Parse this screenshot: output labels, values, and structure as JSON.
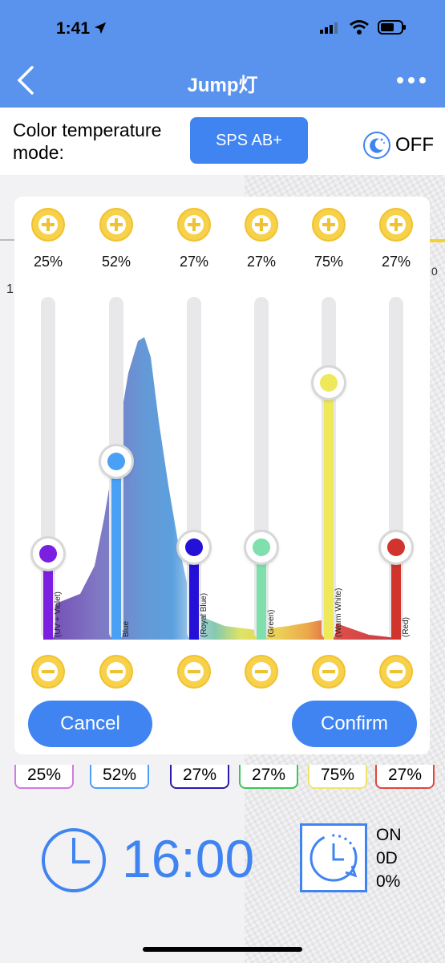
{
  "status": {
    "time": "1:41"
  },
  "nav": {
    "title": "Jump灯"
  },
  "mode": {
    "label": "Color temperature mode:",
    "button": "SPS AB+",
    "off_label": "OFF"
  },
  "channels": [
    {
      "key": "uv",
      "top_pct": "25%",
      "value": 0.25,
      "label": "(UV + Violet)",
      "color": "#7b1fe0",
      "box_pct": "25%",
      "box_color": "#d07be0"
    },
    {
      "key": "blue",
      "top_pct": "52%",
      "value": 0.52,
      "label": "Blue",
      "color": "#4aa0f4",
      "box_pct": "52%",
      "box_color": "#4aa0f4"
    },
    {
      "key": "royal",
      "top_pct": "27%",
      "value": 0.27,
      "label": "(Royal Blue)",
      "color": "#2410d6",
      "box_pct": "27%",
      "box_color": "#2a1ab0"
    },
    {
      "key": "green",
      "top_pct": "27%",
      "value": 0.27,
      "label": "(Green)",
      "color": "#7fe0ad",
      "box_pct": "27%",
      "box_color": "#3ec45a"
    },
    {
      "key": "warm",
      "top_pct": "75%",
      "value": 0.75,
      "label": "(Warm White)",
      "color": "#eee85a",
      "box_pct": "75%",
      "box_color": "#f0e46a"
    },
    {
      "key": "red",
      "top_pct": "27%",
      "value": 0.27,
      "label": "(Red)",
      "color": "#d0342c",
      "box_pct": "27%",
      "box_color": "#e0463c"
    }
  ],
  "buttons": {
    "cancel": "Cancel",
    "confirm": "Confirm"
  },
  "background": {
    "left_tick": "1",
    "right_tick": "0"
  },
  "schedule": {
    "time": "16:00",
    "on": "ON",
    "days": "0D",
    "percent": "0%"
  },
  "colors": {
    "accent": "#3f84f1",
    "header": "#5a93ee",
    "plus_minus": "#f7d149"
  }
}
